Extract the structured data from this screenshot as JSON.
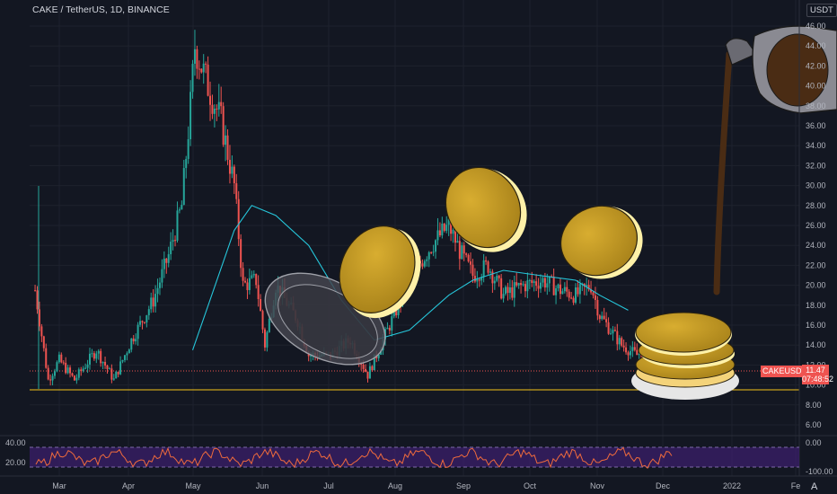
{
  "header": {
    "symbol_title": "CAKE / TetherUS, 1D, BINANCE",
    "currency": "USDT"
  },
  "price_labels": {
    "symbol": "CAKEUSDT",
    "last_price": "11.47",
    "countdown": "07:48:52"
  },
  "settings_icon_glyph": "A",
  "colors": {
    "background": "#131722",
    "up": "#26a69a",
    "down": "#ef5350",
    "ma": "#26c6da",
    "support": "#f5c518",
    "rsi_band": "#3b1f6b",
    "rsi_line": "#f06b3c",
    "coin_fill": "#c49a22",
    "coin_rim": "#fff1a8",
    "pan_fill": "#45454f",
    "syrup": "#4a2c14"
  },
  "chart_data": [
    {
      "type": "candlestick",
      "price_axis_ticks": [
        "46.00",
        "44.00",
        "42.00",
        "40.00",
        "38.00",
        "36.00",
        "34.00",
        "32.00",
        "30.00",
        "28.00",
        "26.00",
        "24.00",
        "22.00",
        "20.00",
        "18.00",
        "16.00",
        "14.00",
        "12.00",
        "10.00",
        "8.00",
        "6.00"
      ],
      "ylim": [
        5.5,
        47.5
      ],
      "time_axis_labels": [
        "Mar",
        "Apr",
        "May",
        "Jun",
        "Jul",
        "Aug",
        "Sep",
        "Oct",
        "Nov",
        "Dec",
        "2022",
        "Fe"
      ],
      "approx_close_path": [
        {
          "x": "Feb 20",
          "y": 19.5
        },
        {
          "x": "Feb 26",
          "y": 10.5
        },
        {
          "x": "Mar 3",
          "y": 12.5
        },
        {
          "x": "Mar 10",
          "y": 10.5
        },
        {
          "x": "Mar 20",
          "y": 13.5
        },
        {
          "x": "Mar 28",
          "y": 10.5
        },
        {
          "x": "Apr 5",
          "y": 14.5
        },
        {
          "x": "Apr 15",
          "y": 18.5
        },
        {
          "x": "Apr 22",
          "y": 23.0
        },
        {
          "x": "Apr 28",
          "y": 28.0
        },
        {
          "x": "May 2",
          "y": 38.0
        },
        {
          "x": "May 4",
          "y": 44.0
        },
        {
          "x": "May 10",
          "y": 40.0
        },
        {
          "x": "May 16",
          "y": 36.5
        },
        {
          "x": "May 22",
          "y": 30.0
        },
        {
          "x": "May 26",
          "y": 20.0
        },
        {
          "x": "Jun 1",
          "y": 20.5
        },
        {
          "x": "Jun 5",
          "y": 14.0
        },
        {
          "x": "Jun 10",
          "y": 20.0
        },
        {
          "x": "Jun 20",
          "y": 16.5
        },
        {
          "x": "Jun 25",
          "y": 13.0
        },
        {
          "x": "Jul 5",
          "y": 13.0
        },
        {
          "x": "Jul 14",
          "y": 14.5
        },
        {
          "x": "Jul 22",
          "y": 11.0
        },
        {
          "x": "Aug 1",
          "y": 16.0
        },
        {
          "x": "Aug 10",
          "y": 20.5
        },
        {
          "x": "Aug 20",
          "y": 24.0
        },
        {
          "x": "Aug 28",
          "y": 26.0
        },
        {
          "x": "Sep 3",
          "y": 23.0
        },
        {
          "x": "Sep 8",
          "y": 21.0
        },
        {
          "x": "Sep 15",
          "y": 22.0
        },
        {
          "x": "Sep 22",
          "y": 19.0
        },
        {
          "x": "Oct 1",
          "y": 20.0
        },
        {
          "x": "Oct 10",
          "y": 20.5
        },
        {
          "x": "Oct 18",
          "y": 19.5
        },
        {
          "x": "Oct 25",
          "y": 19.0
        },
        {
          "x": "Nov 1",
          "y": 20.0
        },
        {
          "x": "Nov 5",
          "y": 17.0
        },
        {
          "x": "Nov 15",
          "y": 14.0
        },
        {
          "x": "Nov 22",
          "y": 13.0
        },
        {
          "x": "Nov 27",
          "y": 14.0
        },
        {
          "x": "Dec 3",
          "y": 11.47
        }
      ],
      "moving_average": [
        {
          "x": "May 3",
          "y": 13.5
        },
        {
          "x": "May 22",
          "y": 25.5
        },
        {
          "x": "May 30",
          "y": 28.0
        },
        {
          "x": "Jun 10",
          "y": 27.0
        },
        {
          "x": "Jun 25",
          "y": 24.0
        },
        {
          "x": "Jul 10",
          "y": 18.5
        },
        {
          "x": "Jul 25",
          "y": 14.5
        },
        {
          "x": "Aug 10",
          "y": 15.5
        },
        {
          "x": "Aug 28",
          "y": 19.0
        },
        {
          "x": "Sep 8",
          "y": 20.5
        },
        {
          "x": "Sep 22",
          "y": 21.5
        },
        {
          "x": "Oct 8",
          "y": 21.0
        },
        {
          "x": "Oct 25",
          "y": 20.5
        },
        {
          "x": "Nov 5",
          "y": 19.0
        },
        {
          "x": "Nov 18",
          "y": 17.5
        }
      ],
      "horizontal_lines": [
        {
          "name": "support",
          "value": 9.6,
          "style": "solid"
        },
        {
          "name": "last-price",
          "value": 11.47,
          "style": "dotted"
        }
      ]
    },
    {
      "type": "line",
      "panel": "oscillator",
      "axis_ticks": [
        "40.00",
        "20.00",
        "0.00",
        "-100.00"
      ],
      "ylim": [
        -100,
        0
      ],
      "band": [
        -80,
        -20
      ]
    }
  ]
}
